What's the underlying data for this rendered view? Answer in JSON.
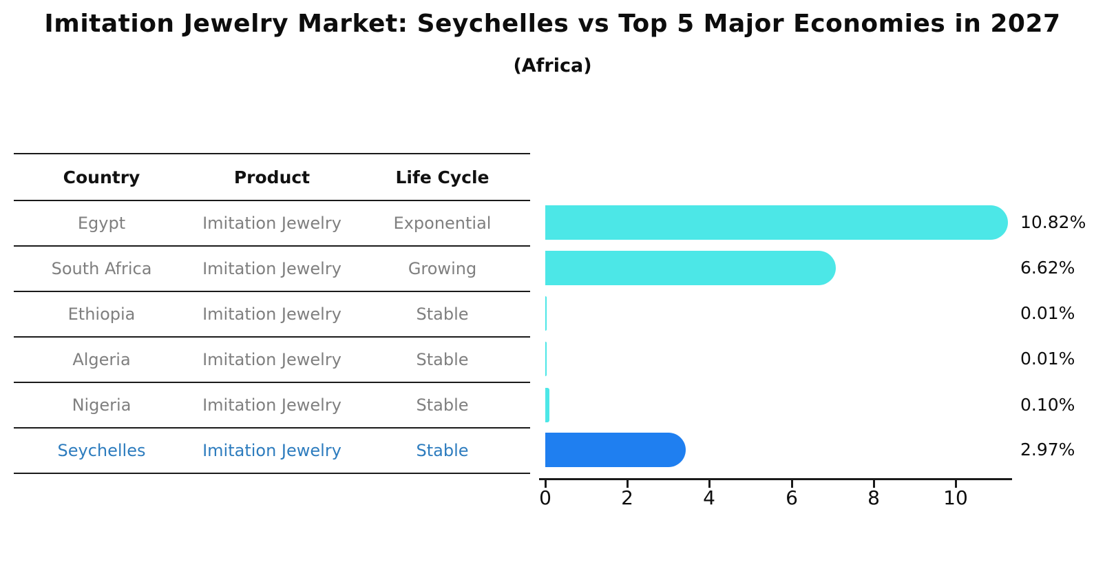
{
  "title": "Imitation Jewelry Market: Seychelles vs Top 5 Major Economies in 2027",
  "subtitle": "(Africa)",
  "table": {
    "headers": [
      "Country",
      "Product",
      "Life Cycle"
    ],
    "rows": [
      {
        "country": "Egypt",
        "product": "Imitation Jewelry",
        "life_cycle": "Exponential"
      },
      {
        "country": "South Africa",
        "product": "Imitation Jewelry",
        "life_cycle": "Growing"
      },
      {
        "country": "Ethiopia",
        "product": "Imitation Jewelry",
        "life_cycle": "Stable"
      },
      {
        "country": "Algeria",
        "product": "Imitation Jewelry",
        "life_cycle": "Stable"
      },
      {
        "country": "Nigeria",
        "product": "Imitation Jewelry",
        "life_cycle": "Stable"
      },
      {
        "country": "Seychelles",
        "product": "Imitation Jewelry",
        "life_cycle": "Stable"
      }
    ]
  },
  "chart_data": {
    "type": "bar",
    "orientation": "horizontal",
    "categories": [
      "Egypt",
      "South Africa",
      "Ethiopia",
      "Algeria",
      "Nigeria",
      "Seychelles"
    ],
    "values": [
      10.82,
      6.62,
      0.01,
      0.01,
      0.1,
      2.97
    ],
    "value_labels": [
      "10.82%",
      "6.62%",
      "0.01%",
      "0.01%",
      "0.10%",
      "2.97%"
    ],
    "x_ticks": [
      "0",
      "2",
      "4",
      "6",
      "8",
      "10"
    ],
    "xlim": [
      0,
      11.4
    ],
    "grid": false,
    "legend": "none",
    "bar_color": "#4ce7e7",
    "highlight_color": "#1f7ff0",
    "highlight_index": 5,
    "highlight_text_color": "#2d7cbe"
  }
}
